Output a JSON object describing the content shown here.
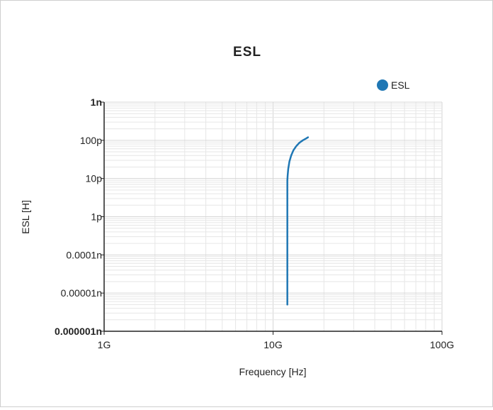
{
  "chart_data": {
    "type": "line",
    "title": "ESL",
    "xlabel": "Frequency [Hz]",
    "ylabel": "ESL [H]",
    "x_scale": "log",
    "y_scale": "log",
    "xlim": [
      1000000000,
      100000000000
    ],
    "ylim": [
      1e-15,
      1e-09
    ],
    "x_ticks": [
      {
        "value": 1000000000,
        "label": "1G"
      },
      {
        "value": 10000000000,
        "label": "10G"
      },
      {
        "value": 100000000000,
        "label": "100G"
      }
    ],
    "y_ticks": [
      {
        "value": 1e-15,
        "label": "0.000001n",
        "bold": true
      },
      {
        "value": 1e-14,
        "label": "0.00001n",
        "bold": false
      },
      {
        "value": 1e-13,
        "label": "0.0001n",
        "bold": false
      },
      {
        "value": 1e-12,
        "label": "1p",
        "bold": false
      },
      {
        "value": 1e-11,
        "label": "10p",
        "bold": false
      },
      {
        "value": 1e-10,
        "label": "100p",
        "bold": false
      },
      {
        "value": 1e-09,
        "label": "1n",
        "bold": true
      }
    ],
    "grid": true,
    "legend_position": "top-right",
    "series": [
      {
        "name": "ESL",
        "color": "#1f77b4",
        "points": [
          [
            12150000000,
            5e-15
          ],
          [
            12150000000,
            9e-12
          ],
          [
            12200000000,
            1.2e-11
          ],
          [
            12300000000,
            1.8e-11
          ],
          [
            12500000000,
            2.8e-11
          ],
          [
            12800000000,
            4e-11
          ],
          [
            13200000000,
            5.5e-11
          ],
          [
            13700000000,
            7e-11
          ],
          [
            14300000000,
            8.6e-11
          ],
          [
            15000000000,
            1e-10
          ],
          [
            15700000000,
            1.12e-10
          ],
          [
            16100000000,
            1.2e-10
          ]
        ]
      }
    ]
  }
}
